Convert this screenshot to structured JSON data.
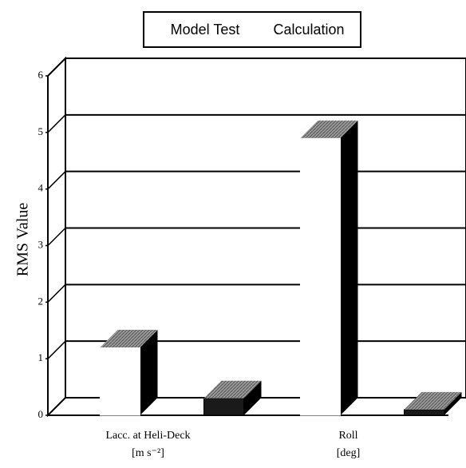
{
  "chart_data": {
    "type": "bar3d",
    "y_label": "RMS Value",
    "categories": [
      [
        "Lacc. at Heli-Deck",
        "[m s⁻²]"
      ],
      [
        "Roll",
        "[deg]"
      ]
    ],
    "series": [
      {
        "name": "Model Test",
        "color": "#ffffff",
        "values": [
          1.2,
          4.9
        ]
      },
      {
        "name": "Calculation",
        "color": "#1a1a1a",
        "values": [
          0.3,
          0.1
        ]
      }
    ],
    "ylim": [
      0,
      6
    ],
    "yticks": [
      0,
      1,
      2,
      3,
      4,
      5,
      6
    ],
    "grid": true
  }
}
